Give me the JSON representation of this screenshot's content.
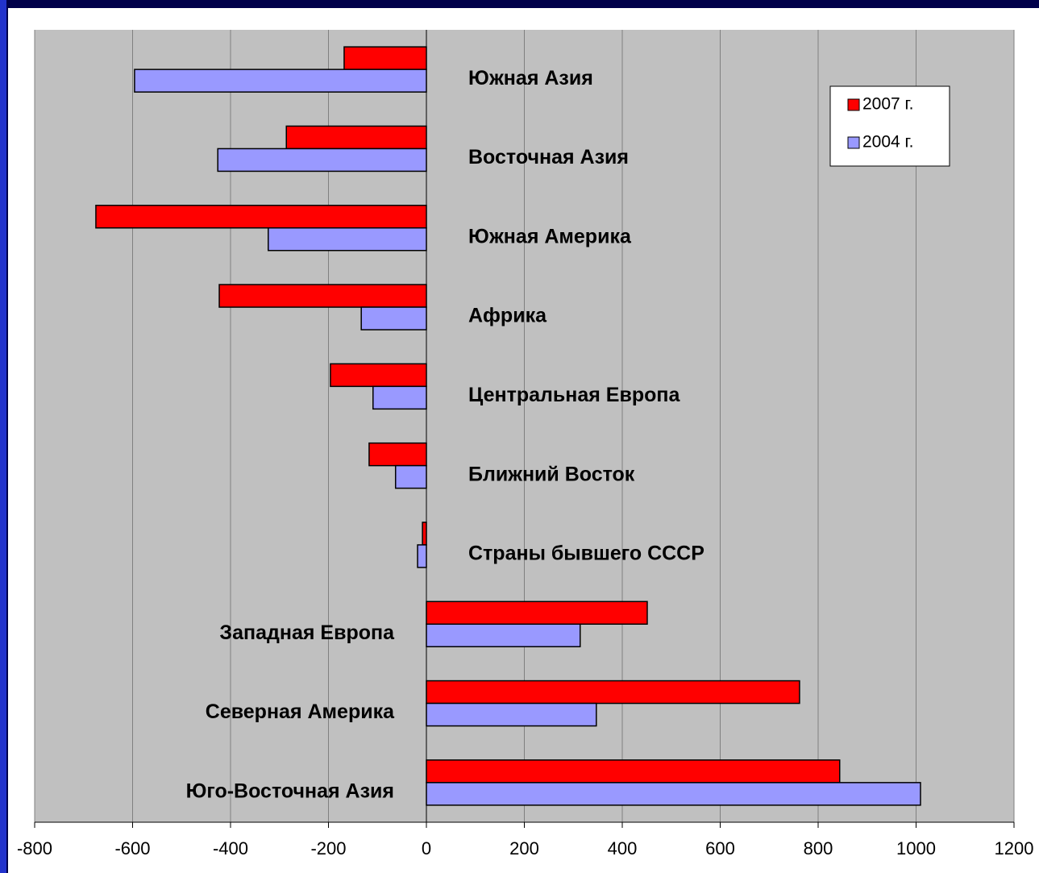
{
  "chart_data": {
    "type": "hbar",
    "categories": [
      "Южная Азия",
      "Восточная Азия",
      "Южная Америка",
      "Африка",
      "Центральная Европа",
      "Ближний Восток",
      "Страны бывшего СССР",
      "Западная Европа",
      "Северная Америка",
      "Юго-Восточная Азия"
    ],
    "series": [
      {
        "name": "2007 г.",
        "color": "#ff0000",
        "values": [
          -168,
          -286,
          -675,
          -423,
          -196,
          -117,
          -8,
          451,
          762,
          844
        ]
      },
      {
        "name": "2004 г.",
        "color": "#9999ff",
        "values": [
          -596,
          -426,
          -323,
          -133,
          -109,
          -63,
          -18,
          314,
          347,
          1009
        ]
      }
    ],
    "xlim": [
      -800,
      1200
    ],
    "xticks": [
      -800,
      -600,
      -400,
      -200,
      0,
      200,
      400,
      600,
      800,
      1000,
      1200
    ],
    "grid": true,
    "legend": "top-right"
  }
}
